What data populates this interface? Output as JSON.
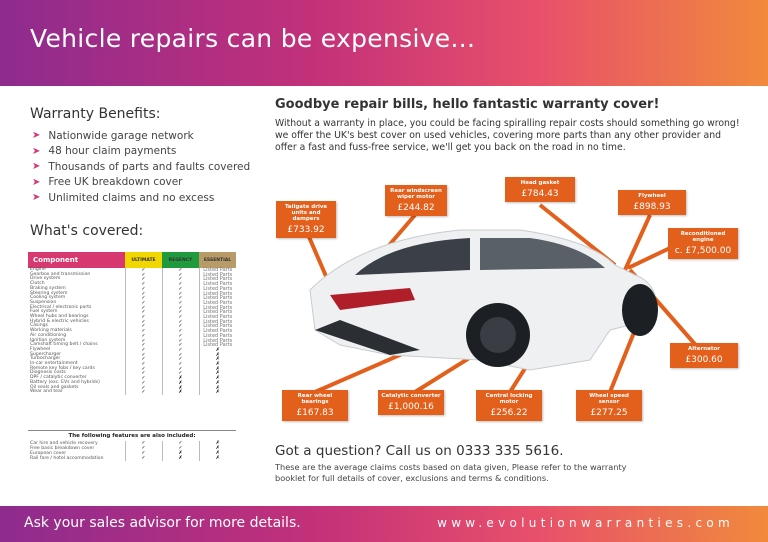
{
  "header": {
    "title": "Vehicle repairs can be expensive..."
  },
  "benefits": {
    "title": "Warranty Benefits:",
    "items": [
      "Nationwide garage network",
      "48 hour claim payments",
      "Thousands of parts and faults covered",
      "Free UK breakdown cover",
      "Unlimited claims and no excess"
    ]
  },
  "covered": {
    "title": "What's covered:",
    "headers": [
      "Component",
      "ULTIMATE",
      "REGENCY",
      "ESSENTIAL"
    ],
    "header_colors": [
      "#d6386f",
      "#f2d600",
      "#1f9a3c",
      "#b89b66"
    ],
    "rows": [
      [
        "Engine",
        "✓",
        "✓",
        "Listed Parts"
      ],
      [
        "Gearbox and transmission",
        "✓",
        "✓",
        "Listed Parts"
      ],
      [
        "Drive system",
        "✓",
        "✓",
        "Listed Parts"
      ],
      [
        "Clutch",
        "✓",
        "✓",
        "Listed Parts"
      ],
      [
        "Braking system",
        "✓",
        "✓",
        "Listed Parts"
      ],
      [
        "Steering system",
        "✓",
        "✓",
        "Listed Parts"
      ],
      [
        "Cooling system",
        "✓",
        "✓",
        "Listed Parts"
      ],
      [
        "Suspension",
        "✓",
        "✓",
        "Listed Parts"
      ],
      [
        "Electrical / electronic parts",
        "✓",
        "✓",
        "Listed Parts"
      ],
      [
        "Fuel system",
        "✓",
        "✓",
        "Listed Parts"
      ],
      [
        "Wheel hubs and bearings",
        "✓",
        "✓",
        "Listed Parts"
      ],
      [
        "Hybrid & electric vehicles",
        "✓",
        "✓",
        "Listed Parts"
      ],
      [
        "Casings",
        "✓",
        "✓",
        "Listed Parts"
      ],
      [
        "Working materials",
        "✓",
        "✓",
        "Listed Parts"
      ],
      [
        "Air conditioning",
        "✓",
        "✓",
        "Listed Parts"
      ],
      [
        "Ignition system",
        "✓",
        "✓",
        "Listed Parts"
      ],
      [
        "Camshaft timing belt / chains",
        "✓",
        "✓",
        "Listed Parts"
      ],
      [
        "Flywheel",
        "✓",
        "✓",
        "✗"
      ],
      [
        "Supercharger",
        "✓",
        "✓",
        "✗"
      ],
      [
        "Turbocharger",
        "✓",
        "✓",
        "✗"
      ],
      [
        "In-car entertainment",
        "✓",
        "✓",
        "✗"
      ],
      [
        "Remote key fobs / key cards",
        "✓",
        "✓",
        "✗"
      ],
      [
        "Diagnosis costs",
        "✓",
        "✓",
        "✗"
      ],
      [
        "DPF / catalytic converter",
        "✓",
        "✗",
        "✗"
      ],
      [
        "Battery (exc. EVs and hybrids)",
        "✓",
        "✗",
        "✗"
      ],
      [
        "Oil seals and gaskets",
        "✓",
        "✗",
        "✗"
      ],
      [
        "Wear and tear",
        "✓",
        "✗",
        "✗"
      ]
    ],
    "extras_title": "The following features are also included:",
    "extras": [
      [
        "Car hire and vehicle recovery",
        "✓",
        "✓",
        "✗"
      ],
      [
        "Free basic breakdown cover",
        "✓",
        "✓",
        "✗"
      ],
      [
        "European cover",
        "✓",
        "✗",
        "✗"
      ],
      [
        "Rail fare / hotel accommodation",
        "✓",
        "✗",
        "✗"
      ]
    ]
  },
  "main": {
    "headline": "Goodbye repair bills, hello fantastic warranty cover!",
    "intro": "Without a warranty in place, you could be facing spiralling repair costs should something go wrong! we offer the UK's best cover on used vehicles, covering more parts than any other provider and offer a fast and fuss-free service, we'll get you back on the road in no time.",
    "labels": [
      {
        "name": "Tailgate drive units and dampers",
        "price": "£733.92"
      },
      {
        "name": "Rear windscreen wiper motor",
        "price": "£244.82"
      },
      {
        "name": "Head gasket",
        "price": "£784.43"
      },
      {
        "name": "Flywheel",
        "price": "£898.93"
      },
      {
        "name": "Reconditioned engine",
        "price": "c. £7,500.00"
      },
      {
        "name": "Alternator",
        "price": "£300.60"
      },
      {
        "name": "Rear wheel bearings",
        "price": "£167.83"
      },
      {
        "name": "Catalytic converter",
        "price": "£1,000.16"
      },
      {
        "name": "Central locking motor",
        "price": "£256.22"
      },
      {
        "name": "Wheel speed sensor",
        "price": "£277.25"
      }
    ],
    "label_color": "#e35f1c",
    "question": "Got a question? Call us on 0333 335 5616.",
    "note": "These are the average claims costs based on data given, Please refer to the warranty booklet for full details of cover, exclusions and terms & conditions."
  },
  "footer": {
    "left": "Ask your sales advisor for more details.",
    "right": "www.evolutionwarranties.com"
  }
}
